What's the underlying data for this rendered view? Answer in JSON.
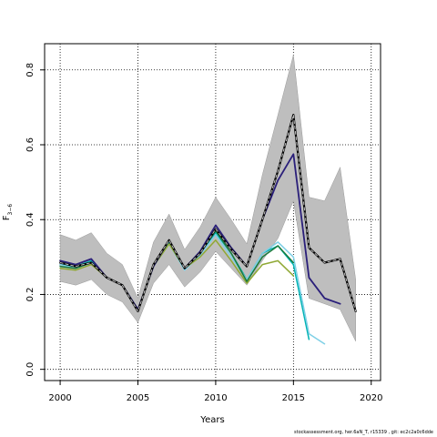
{
  "chart_data": {
    "type": "line",
    "xlabel": "Years",
    "ylabel_main": "F",
    "ylabel_sub": "3−6",
    "xlim": [
      1999,
      2020.6
    ],
    "ylim": [
      -0.03,
      0.87
    ],
    "x_ticks": [
      2000,
      2005,
      2010,
      2015,
      2020
    ],
    "y_ticks": [
      0.0,
      0.2,
      0.4,
      0.6,
      0.8
    ],
    "grid": "dotted",
    "band": {
      "x": [
        2000,
        2001,
        2002,
        2003,
        2004,
        2005,
        2006,
        2007,
        2008,
        2009,
        2010,
        2011,
        2012,
        2013,
        2014,
        2015,
        2016,
        2017,
        2018,
        2019
      ],
      "upper": [
        0.36,
        0.345,
        0.365,
        0.31,
        0.28,
        0.19,
        0.34,
        0.415,
        0.32,
        0.38,
        0.46,
        0.4,
        0.335,
        0.52,
        0.68,
        0.84,
        0.46,
        0.45,
        0.54,
        0.24
      ],
      "lower": [
        0.235,
        0.225,
        0.24,
        0.2,
        0.18,
        0.125,
        0.23,
        0.28,
        0.22,
        0.26,
        0.315,
        0.27,
        0.225,
        0.29,
        0.35,
        0.45,
        0.19,
        0.175,
        0.16,
        0.075
      ],
      "color": "#bebebe"
    },
    "series": [
      {
        "color": "#00b3b3",
        "width": 1.5,
        "dash": false,
        "x": [
          2000,
          2001,
          2002,
          2003,
          2004,
          2005,
          2006,
          2007,
          2008,
          2009,
          2010,
          2011,
          2012,
          2013,
          2014,
          2015,
          2016
        ],
        "y": [
          0.28,
          0.275,
          0.29,
          0.245,
          0.225,
          0.155,
          0.28,
          0.34,
          0.27,
          0.31,
          0.365,
          0.31,
          0.24,
          0.31,
          0.33,
          0.28,
          0.08
        ]
      },
      {
        "color": "#7fd0e6",
        "width": 1.5,
        "dash": false,
        "x": [
          2000,
          2001,
          2002,
          2003,
          2004,
          2005,
          2006,
          2007,
          2008,
          2009,
          2010,
          2011,
          2012,
          2013,
          2014,
          2015,
          2016,
          2017
        ],
        "y": [
          0.28,
          0.27,
          0.285,
          0.245,
          0.225,
          0.16,
          0.275,
          0.335,
          0.265,
          0.305,
          0.36,
          0.3,
          0.24,
          0.31,
          0.34,
          0.3,
          0.095,
          0.068
        ]
      },
      {
        "color": "#8fa833",
        "width": 1.5,
        "dash": false,
        "x": [
          2000,
          2001,
          2002,
          2003,
          2004,
          2005,
          2006,
          2007,
          2008,
          2009,
          2010,
          2011,
          2012,
          2013,
          2014,
          2015
        ],
        "y": [
          0.27,
          0.265,
          0.28,
          0.245,
          0.225,
          0.16,
          0.275,
          0.335,
          0.27,
          0.3,
          0.345,
          0.29,
          0.23,
          0.28,
          0.29,
          0.25
        ]
      },
      {
        "color": "#1b7a3a",
        "width": 1.5,
        "dash": false,
        "x": [
          2000,
          2001,
          2002,
          2003,
          2004,
          2005,
          2006,
          2007,
          2008,
          2009,
          2010,
          2011,
          2012,
          2013,
          2014,
          2015
        ],
        "y": [
          0.275,
          0.27,
          0.285,
          0.245,
          0.225,
          0.155,
          0.28,
          0.345,
          0.27,
          0.31,
          0.37,
          0.31,
          0.235,
          0.3,
          0.33,
          0.285
        ]
      },
      {
        "color": "#2a1f7a",
        "width": 1.8,
        "dash": false,
        "x": [
          2000,
          2001,
          2002,
          2003,
          2004,
          2005,
          2006,
          2007,
          2008,
          2009,
          2010,
          2011,
          2012,
          2013,
          2014,
          2015,
          2016,
          2017,
          2018
        ],
        "y": [
          0.29,
          0.28,
          0.295,
          0.245,
          0.225,
          0.16,
          0.275,
          0.345,
          0.27,
          0.315,
          0.385,
          0.325,
          0.275,
          0.4,
          0.505,
          0.575,
          0.245,
          0.19,
          0.175
        ]
      },
      {
        "color": "#000000",
        "width": 2.2,
        "dash": false,
        "x": [
          2000,
          2001,
          2002,
          2003,
          2004,
          2005,
          2006,
          2007,
          2008,
          2009,
          2010,
          2011,
          2012,
          2013,
          2014,
          2015,
          2016,
          2017,
          2018,
          2019
        ],
        "y": [
          0.285,
          0.275,
          0.285,
          0.245,
          0.225,
          0.155,
          0.28,
          0.345,
          0.27,
          0.31,
          0.375,
          0.32,
          0.275,
          0.4,
          0.53,
          0.68,
          0.325,
          0.285,
          0.295,
          0.155
        ]
      },
      {
        "color": "#bfbfbf",
        "width": 1.0,
        "dash": true,
        "x": [
          2000,
          2001,
          2002,
          2003,
          2004,
          2005,
          2006,
          2007,
          2008,
          2009,
          2010,
          2011,
          2012,
          2013,
          2014,
          2015,
          2016,
          2017,
          2018,
          2019
        ],
        "y": [
          0.285,
          0.275,
          0.285,
          0.245,
          0.225,
          0.155,
          0.28,
          0.345,
          0.27,
          0.31,
          0.375,
          0.32,
          0.275,
          0.4,
          0.53,
          0.68,
          0.325,
          0.285,
          0.295,
          0.155
        ]
      }
    ]
  },
  "footer": {
    "text": "stockassessment.org, her.6aN_T, r15339 , git: ec2c2a0c6dde"
  }
}
